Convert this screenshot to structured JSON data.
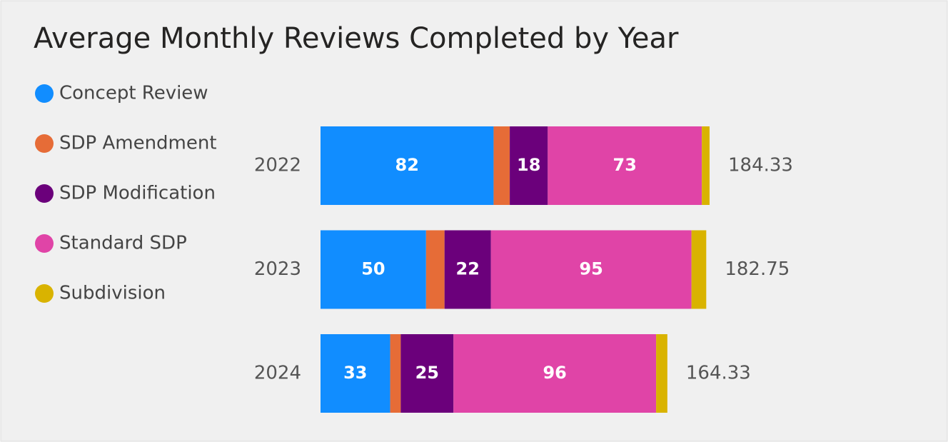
{
  "chart_data": {
    "type": "stacked-bar-horizontal",
    "title": "Average Monthly Reviews Completed by Year",
    "categories": [
      "2022",
      "2023",
      "2024"
    ],
    "series": [
      {
        "name": "Concept Review",
        "color": "#118DFF",
        "values": [
          82,
          50,
          33
        ],
        "labels": true
      },
      {
        "name": "SDP Amendment",
        "color": "#E66C37",
        "values": [
          7.66,
          8.75,
          5
        ],
        "labels": false
      },
      {
        "name": "SDP Modification",
        "color": "#6B007B",
        "values": [
          18,
          22,
          25
        ],
        "labels": true
      },
      {
        "name": "Standard SDP",
        "color": "#E044A7",
        "values": [
          73,
          95,
          96
        ],
        "labels": true
      },
      {
        "name": "Subdivision",
        "color": "#D9B300",
        "values": [
          3.67,
          7,
          5.33
        ],
        "labels": false
      }
    ],
    "totals": [
      184.33,
      182.75,
      164.33
    ],
    "legend": "top-left"
  }
}
